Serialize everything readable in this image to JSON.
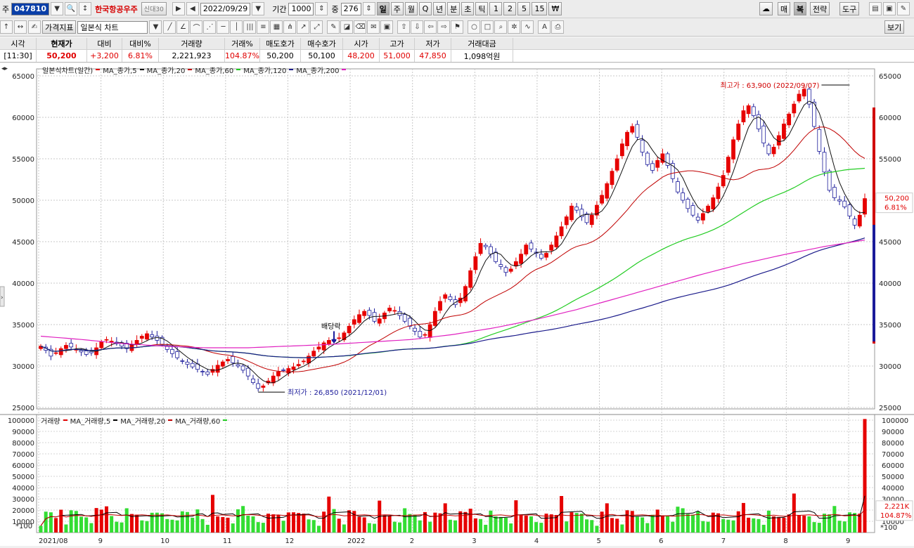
{
  "toolbar1": {
    "market_label": "주",
    "code": "047810",
    "stock_name": "한국항공우주",
    "badge_text": "신대30",
    "date": "2022/09/29",
    "period_label": "기간",
    "period_value": "1000",
    "mid_label": "중",
    "mid_value": "276",
    "tf_buttons": [
      "일",
      "주",
      "월",
      "Q",
      "년",
      "분",
      "초",
      "틱",
      "1",
      "2",
      "5",
      "15",
      "₩"
    ],
    "tf_selected": "일",
    "right_buttons": [
      "매",
      "복",
      "전략",
      "도구"
    ]
  },
  "toolbar2": {
    "indicator_button": "가격지표",
    "chart_type": "일본식 차트",
    "view_button": "보기"
  },
  "quote": {
    "headers": [
      "시각",
      "현재가",
      "대비",
      "대비%",
      "거래량",
      "거래%",
      "매도호가",
      "매수호가",
      "시가",
      "고가",
      "저가",
      "거래대금"
    ],
    "values": [
      "[11:30]",
      "50,200",
      "+3,200",
      "6.81%",
      "2,221,923",
      "104.87%",
      "50,200",
      "50,100",
      "48,200",
      "51,000",
      "47,850",
      "1,098억원"
    ]
  },
  "legend_price": {
    "title": "일본식차트(일간)",
    "items": [
      {
        "label": "MA_종가,5",
        "color": "#e00000"
      },
      {
        "label": "MA_종가,20",
        "color": "#000000"
      },
      {
        "label": "MA_종가,60",
        "color": "#c00000"
      },
      {
        "label": "MA_종가,120",
        "color": "#22cc22"
      },
      {
        "label": "MA_종가,200",
        "color": "#1a1a8a"
      },
      {
        "label": "",
        "color": "#e020c0"
      }
    ]
  },
  "legend_volume": {
    "title": "거래량",
    "items": [
      {
        "label": "MA_거래량,5",
        "color": "#e00000"
      },
      {
        "label": "MA_거래량,20",
        "color": "#000000"
      },
      {
        "label": "MA_거래량,60",
        "color": "#c00000"
      },
      {
        "label": "",
        "color": "#22cc22"
      }
    ]
  },
  "chart_data": [
    {
      "type": "candlestick",
      "ylim": [
        25000,
        65000
      ],
      "y_ticks": [
        "65000",
        "60000",
        "55000",
        "50000",
        "45000",
        "40000",
        "35000",
        "30000",
        "25000"
      ],
      "x_labels": [
        "2021/08",
        "9",
        "10",
        "11",
        "12",
        "2022",
        "2",
        "3",
        "4",
        "5",
        "6",
        "7",
        "8",
        "9"
      ],
      "annotations": {
        "high": "최고가 : 63,900 (2022/09/07)",
        "low": "최저가 : 26,850 (2021/12/01)",
        "dividend": "배당락"
      },
      "right_tags": {
        "price": "50,200",
        "pct": "6.81%"
      },
      "closes": [
        32400,
        31900,
        31200,
        31600,
        32100,
        32500,
        32300,
        32000,
        31700,
        31400,
        31600,
        32200,
        32900,
        33200,
        33000,
        32700,
        32400,
        32100,
        32600,
        33100,
        33600,
        33900,
        33500,
        33100,
        32600,
        32000,
        31500,
        31000,
        30600,
        30200,
        29900,
        29600,
        29300,
        29000,
        29600,
        30100,
        30500,
        30800,
        30400,
        30000,
        29500,
        28800,
        28000,
        27300,
        27600,
        28200,
        28800,
        29300,
        29500,
        29700,
        29900,
        30200,
        30600,
        31200,
        31800,
        32300,
        32800,
        33100,
        33000,
        33400,
        34000,
        34800,
        35600,
        36200,
        36600,
        36100,
        35400,
        35700,
        36400,
        37000,
        36700,
        36100,
        35400,
        34800,
        34200,
        33500,
        33800,
        35000,
        36600,
        37800,
        38600,
        38000,
        37400,
        38200,
        39600,
        41500,
        43200,
        44800,
        44400,
        43500,
        42600,
        42000,
        41300,
        41700,
        42600,
        43500,
        44600,
        44100,
        43600,
        43000,
        43600,
        44600,
        45700,
        46800,
        48000,
        49300,
        48800,
        48000,
        47300,
        48200,
        49400,
        50600,
        52000,
        53500,
        55000,
        56800,
        58200,
        58900,
        57600,
        55800,
        54300,
        53600,
        54800,
        55600,
        54200,
        52600,
        51000,
        50000,
        49000,
        48200,
        47600,
        48400,
        49300,
        50300,
        51600,
        53000,
        55200,
        57300,
        59200,
        60800,
        61400,
        60200,
        58600,
        56900,
        55600,
        56400,
        57800,
        59200,
        60400,
        61600,
        62800,
        63400,
        61600,
        58900,
        55900,
        53400,
        51200,
        50300,
        49900,
        49200,
        48100,
        47000,
        48200,
        50200
      ],
      "ma200": [
        33600,
        33200,
        32700,
        32400,
        32200,
        32200,
        32400,
        32600,
        32900,
        33200,
        33800,
        34600,
        35600,
        36800,
        38200,
        39600,
        41000,
        42300,
        43400,
        44400,
        45200
      ]
    },
    {
      "type": "bar",
      "name": "거래량",
      "ylim": [
        0,
        100000
      ],
      "y_ticks": [
        "100000",
        "90000",
        "80000",
        "70000",
        "60000",
        "50000",
        "40000",
        "30000",
        "20000",
        "10000"
      ],
      "unit": "*100",
      "right_tags": {
        "volume": "2,221K",
        "pct": "104.87%"
      },
      "spike_max": 101000
    }
  ]
}
